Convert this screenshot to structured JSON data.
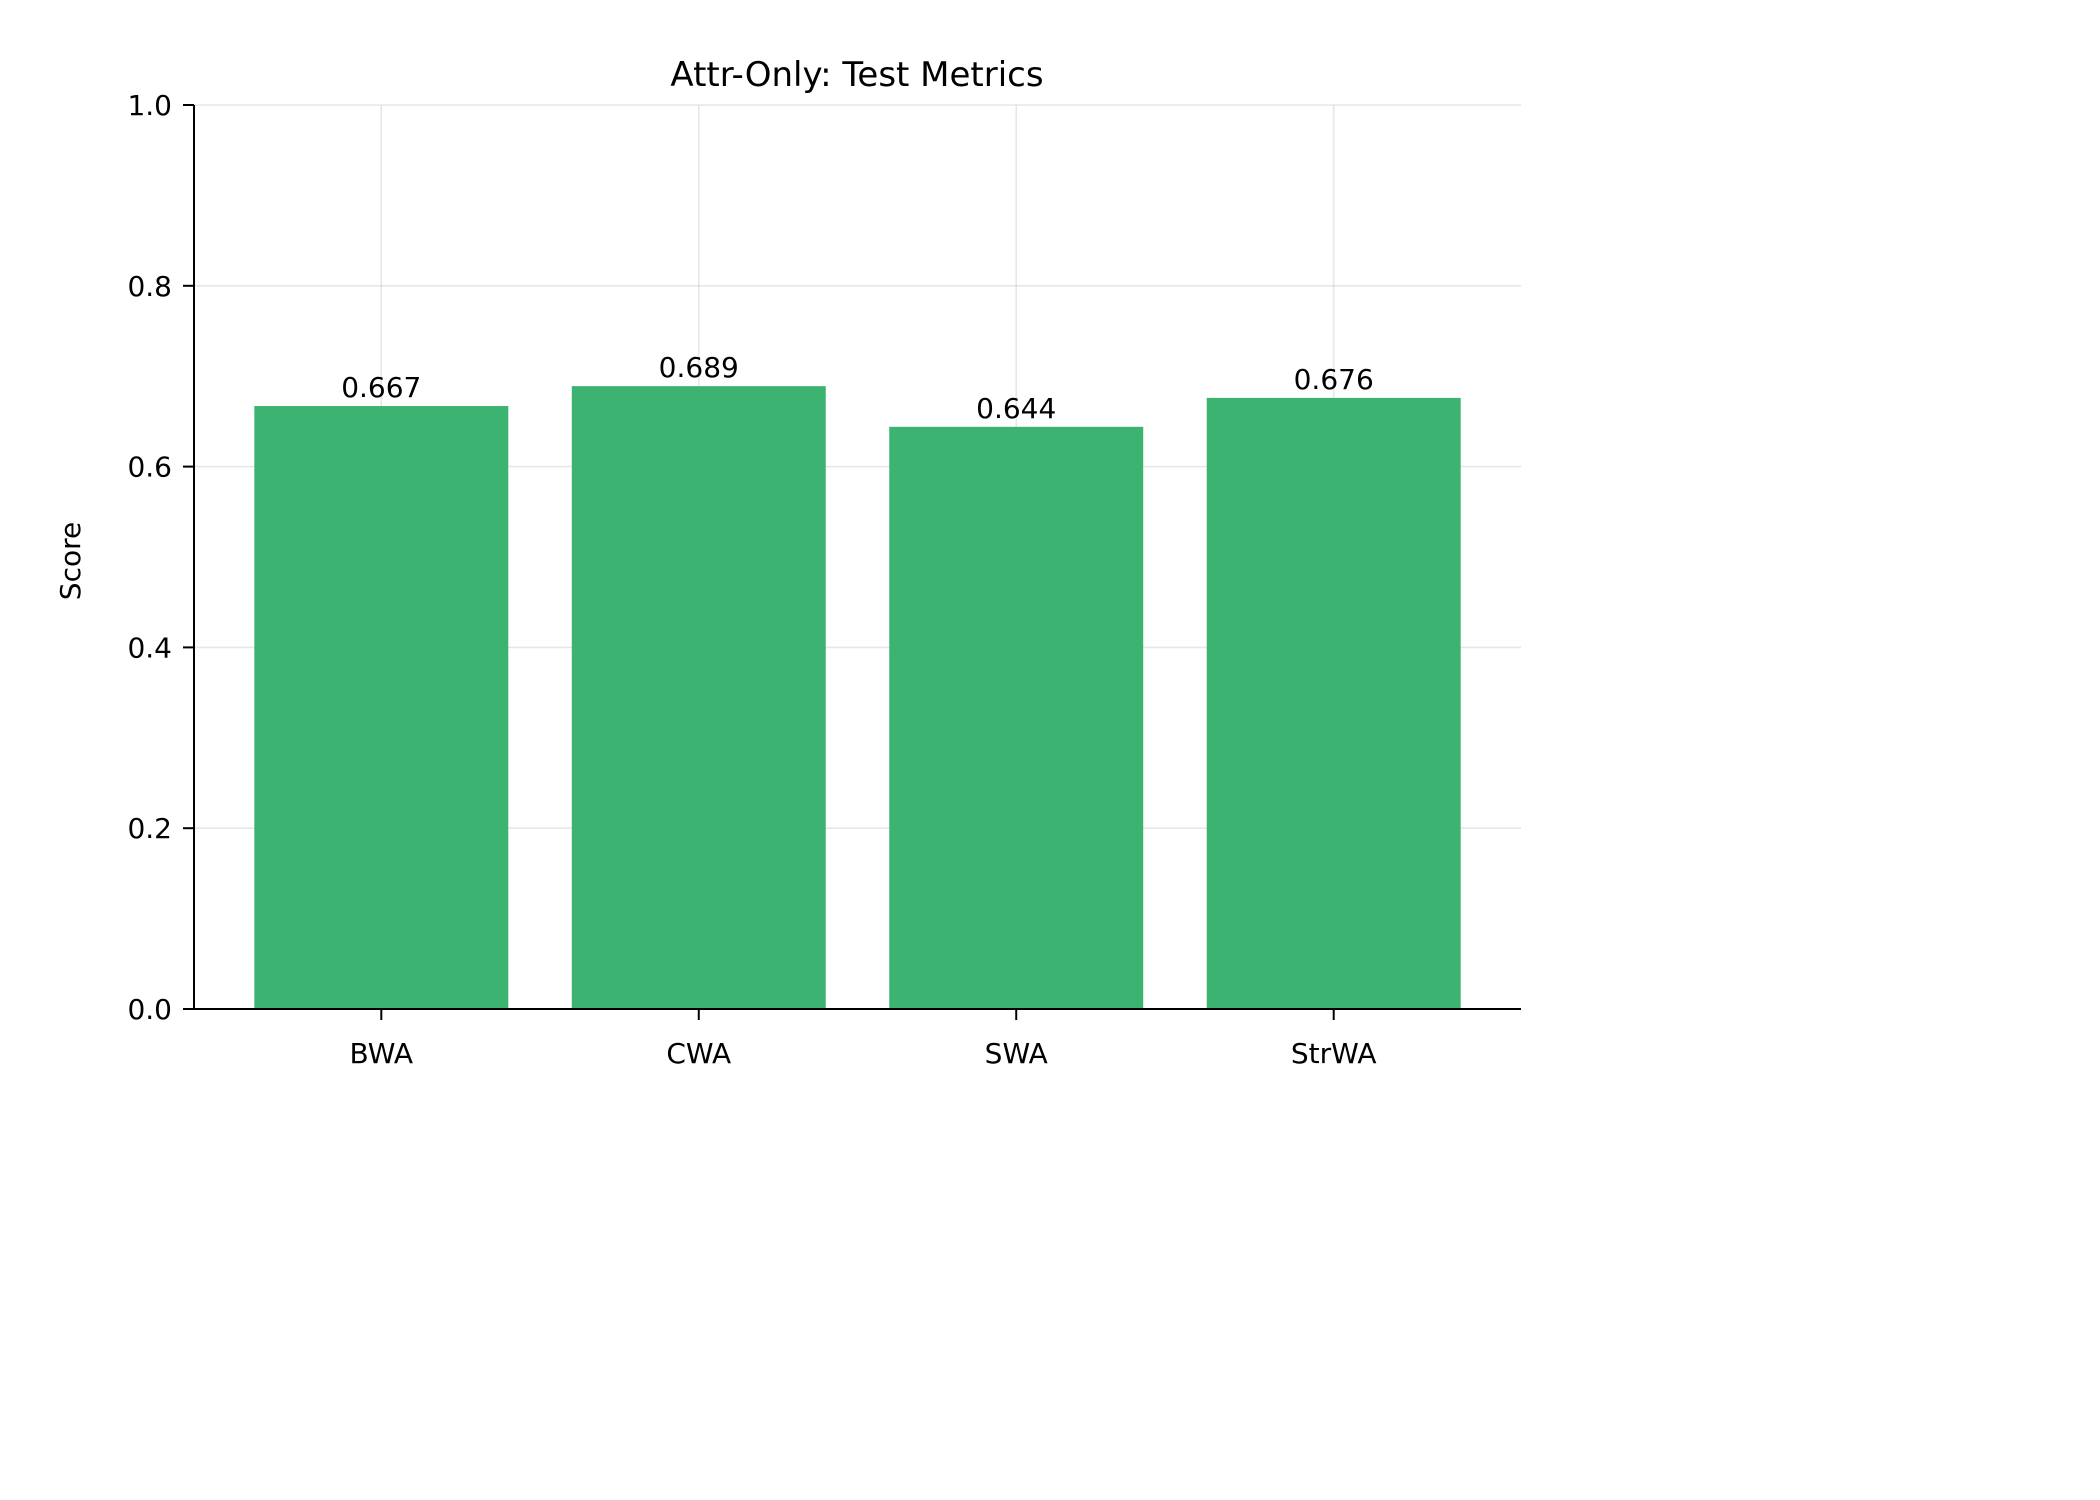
{
  "chart_data": {
    "type": "bar",
    "title": "Attr-Only: Test Metrics",
    "xlabel": "",
    "ylabel": "Score",
    "categories": [
      "BWA",
      "CWA",
      "SWA",
      "StrWA"
    ],
    "values": [
      0.667,
      0.689,
      0.644,
      0.676
    ],
    "value_labels": [
      "0.667",
      "0.689",
      "0.644",
      "0.676"
    ],
    "ylim": [
      0,
      1.0
    ],
    "yticks": [
      0.0,
      0.2,
      0.4,
      0.6,
      0.8,
      1.0
    ],
    "ytick_labels": [
      "0.0",
      "0.2",
      "0.4",
      "0.6",
      "0.8",
      "1.0"
    ],
    "grid": true,
    "bar_color": "#3cb371",
    "legend": "none"
  }
}
